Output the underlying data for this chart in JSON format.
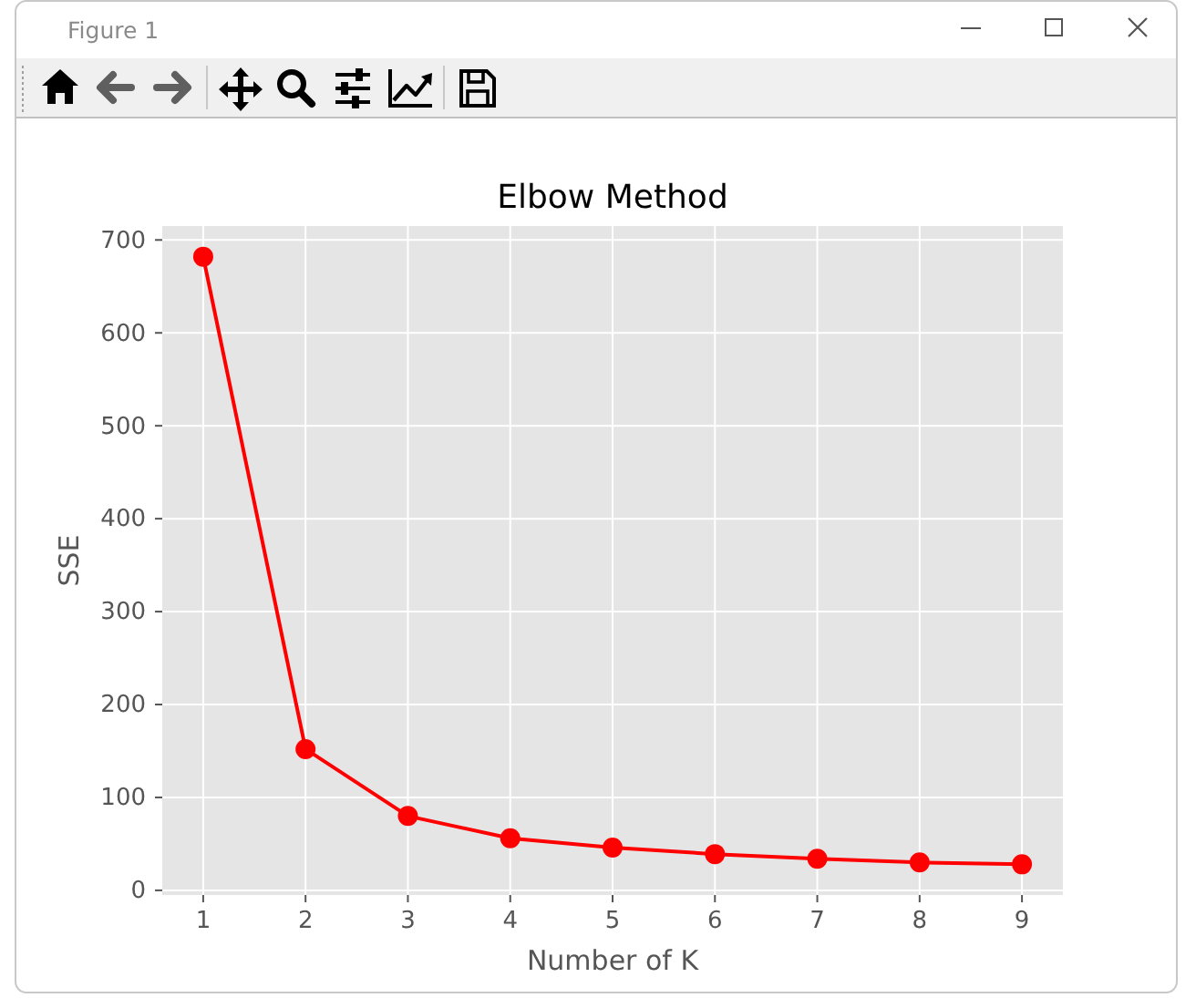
{
  "chart_data": {
    "type": "line",
    "title": "Elbow Method",
    "xlabel": "Number of K",
    "ylabel": "SSE",
    "annotations": [
      "Figure 1"
    ],
    "x": [
      1,
      2,
      3,
      4,
      5,
      6,
      7,
      8,
      9
    ],
    "values": [
      682,
      152,
      80,
      56,
      46,
      39,
      34,
      30,
      28
    ],
    "color": "#ff0000",
    "xlim": [
      0.6,
      9.4
    ],
    "ylim": [
      -5,
      715
    ],
    "xticks": [
      1,
      2,
      3,
      4,
      5,
      6,
      7,
      8,
      9
    ],
    "yticks": [
      0,
      100,
      200,
      300,
      400,
      500,
      600,
      700
    ],
    "grid": true,
    "marker": "circle",
    "line_style": "solid"
  }
}
